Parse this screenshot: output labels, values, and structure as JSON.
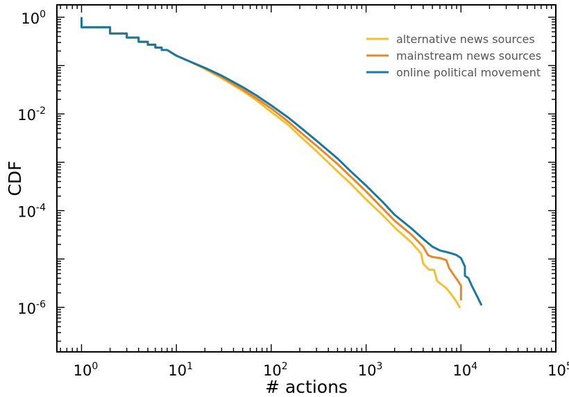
{
  "chart_data": {
    "type": "line",
    "title": "",
    "xlabel": "# actions",
    "ylabel": "CDF",
    "xscale": "log",
    "yscale": "log",
    "xlim": [
      0.55,
      100000
    ],
    "ylim": [
      1.2e-07,
      1.8
    ],
    "x_ticks": [
      1,
      10,
      100,
      1000,
      10000,
      100000
    ],
    "x_tick_labels": [
      {
        "base": "10",
        "exp": "0"
      },
      {
        "base": "10",
        "exp": "1"
      },
      {
        "base": "10",
        "exp": "2"
      },
      {
        "base": "10",
        "exp": "3"
      },
      {
        "base": "10",
        "exp": "4"
      },
      {
        "base": "10",
        "exp": "5"
      }
    ],
    "y_ticks": [
      1,
      0.01,
      0.0001,
      1e-06
    ],
    "y_tick_labels": [
      {
        "base": "10",
        "exp": "0"
      },
      {
        "base": "10",
        "exp": "-2"
      },
      {
        "base": "10",
        "exp": "-4"
      },
      {
        "base": "10",
        "exp": "-6"
      }
    ],
    "grid": false,
    "legend_position": "top-right",
    "series": [
      {
        "name": "alternative news sources",
        "color": "#f5bf2f",
        "points": [
          [
            1,
            1
          ],
          [
            1,
            0.62
          ],
          [
            2,
            0.62
          ],
          [
            2,
            0.46
          ],
          [
            3,
            0.46
          ],
          [
            3,
            0.38
          ],
          [
            4,
            0.38
          ],
          [
            4,
            0.31
          ],
          [
            5,
            0.31
          ],
          [
            5,
            0.27
          ],
          [
            6,
            0.27
          ],
          [
            6,
            0.235
          ],
          [
            7,
            0.235
          ],
          [
            7,
            0.21
          ],
          [
            8,
            0.21
          ],
          [
            10,
            0.16
          ],
          [
            14,
            0.12
          ],
          [
            20,
            0.085
          ],
          [
            30,
            0.055
          ],
          [
            50,
            0.03
          ],
          [
            70,
            0.019
          ],
          [
            100,
            0.011
          ],
          [
            150,
            0.006
          ],
          [
            200,
            0.0035
          ],
          [
            300,
            0.0017
          ],
          [
            500,
            0.00065
          ],
          [
            700,
            0.00035
          ],
          [
            1000,
            0.00017
          ],
          [
            1500,
            8e-05
          ],
          [
            2000,
            4.5e-05
          ],
          [
            3000,
            2.2e-05
          ],
          [
            3800,
            1.3e-05
          ],
          [
            4000,
            8e-06
          ],
          [
            4600,
            6e-06
          ],
          [
            5200,
            6e-06
          ],
          [
            5600,
            3.5e-06
          ],
          [
            7000,
            2.5e-06
          ],
          [
            8000,
            1.8e-06
          ],
          [
            9000,
            1.3e-06
          ],
          [
            9800,
            9.7e-07
          ]
        ]
      },
      {
        "name": "mainstream news sources",
        "color": "#e8872a",
        "points": [
          [
            1,
            1
          ],
          [
            1,
            0.62
          ],
          [
            2,
            0.62
          ],
          [
            2,
            0.46
          ],
          [
            3,
            0.46
          ],
          [
            3,
            0.38
          ],
          [
            4,
            0.38
          ],
          [
            4,
            0.31
          ],
          [
            5,
            0.31
          ],
          [
            5,
            0.27
          ],
          [
            6,
            0.27
          ],
          [
            6,
            0.235
          ],
          [
            7,
            0.235
          ],
          [
            7,
            0.21
          ],
          [
            8,
            0.21
          ],
          [
            10,
            0.16
          ],
          [
            14,
            0.12
          ],
          [
            20,
            0.088
          ],
          [
            30,
            0.058
          ],
          [
            50,
            0.032
          ],
          [
            70,
            0.021
          ],
          [
            100,
            0.013
          ],
          [
            150,
            0.007
          ],
          [
            200,
            0.0043
          ],
          [
            300,
            0.0022
          ],
          [
            500,
            0.00092
          ],
          [
            700,
            0.00049
          ],
          [
            1000,
            0.00025
          ],
          [
            1500,
            0.00011
          ],
          [
            2000,
            6.2e-05
          ],
          [
            3000,
            3.2e-05
          ],
          [
            4000,
            1.8e-05
          ],
          [
            4500,
            1.2e-05
          ],
          [
            5000,
            1.1e-05
          ],
          [
            6000,
            1.05e-05
          ],
          [
            7000,
            9.5e-06
          ],
          [
            7500,
            6.5e-06
          ],
          [
            8500,
            4.5e-06
          ],
          [
            9500,
            3.3e-06
          ],
          [
            10000,
            2.8e-06
          ],
          [
            10000,
            1.4e-06
          ]
        ]
      },
      {
        "name": "online political movement",
        "color": "#17799f",
        "points": [
          [
            1,
            1
          ],
          [
            1,
            0.62
          ],
          [
            2,
            0.62
          ],
          [
            2,
            0.46
          ],
          [
            3,
            0.46
          ],
          [
            3,
            0.38
          ],
          [
            4,
            0.38
          ],
          [
            4,
            0.31
          ],
          [
            5,
            0.31
          ],
          [
            5,
            0.27
          ],
          [
            6,
            0.27
          ],
          [
            6,
            0.235
          ],
          [
            7,
            0.235
          ],
          [
            7,
            0.21
          ],
          [
            8,
            0.21
          ],
          [
            10,
            0.16
          ],
          [
            14,
            0.12
          ],
          [
            20,
            0.09
          ],
          [
            30,
            0.062
          ],
          [
            50,
            0.036
          ],
          [
            70,
            0.024
          ],
          [
            100,
            0.015
          ],
          [
            150,
            0.0085
          ],
          [
            200,
            0.0054
          ],
          [
            300,
            0.0028
          ],
          [
            500,
            0.0012
          ],
          [
            700,
            0.00063
          ],
          [
            1000,
            0.00033
          ],
          [
            1500,
            0.00015
          ],
          [
            2000,
            8.2e-05
          ],
          [
            3000,
            4.3e-05
          ],
          [
            4000,
            2.6e-05
          ],
          [
            5000,
            1.8e-05
          ],
          [
            6000,
            1.5e-05
          ],
          [
            7000,
            1.4e-05
          ],
          [
            8000,
            1.3e-05
          ],
          [
            9000,
            1.2e-05
          ],
          [
            10000,
            1.05e-05
          ],
          [
            11000,
            7e-06
          ],
          [
            11000,
            4.5e-06
          ],
          [
            12000,
            4e-06
          ],
          [
            13000,
            2.8e-06
          ],
          [
            15000,
            1.6e-06
          ],
          [
            16500,
            1.1e-06
          ]
        ]
      }
    ]
  }
}
